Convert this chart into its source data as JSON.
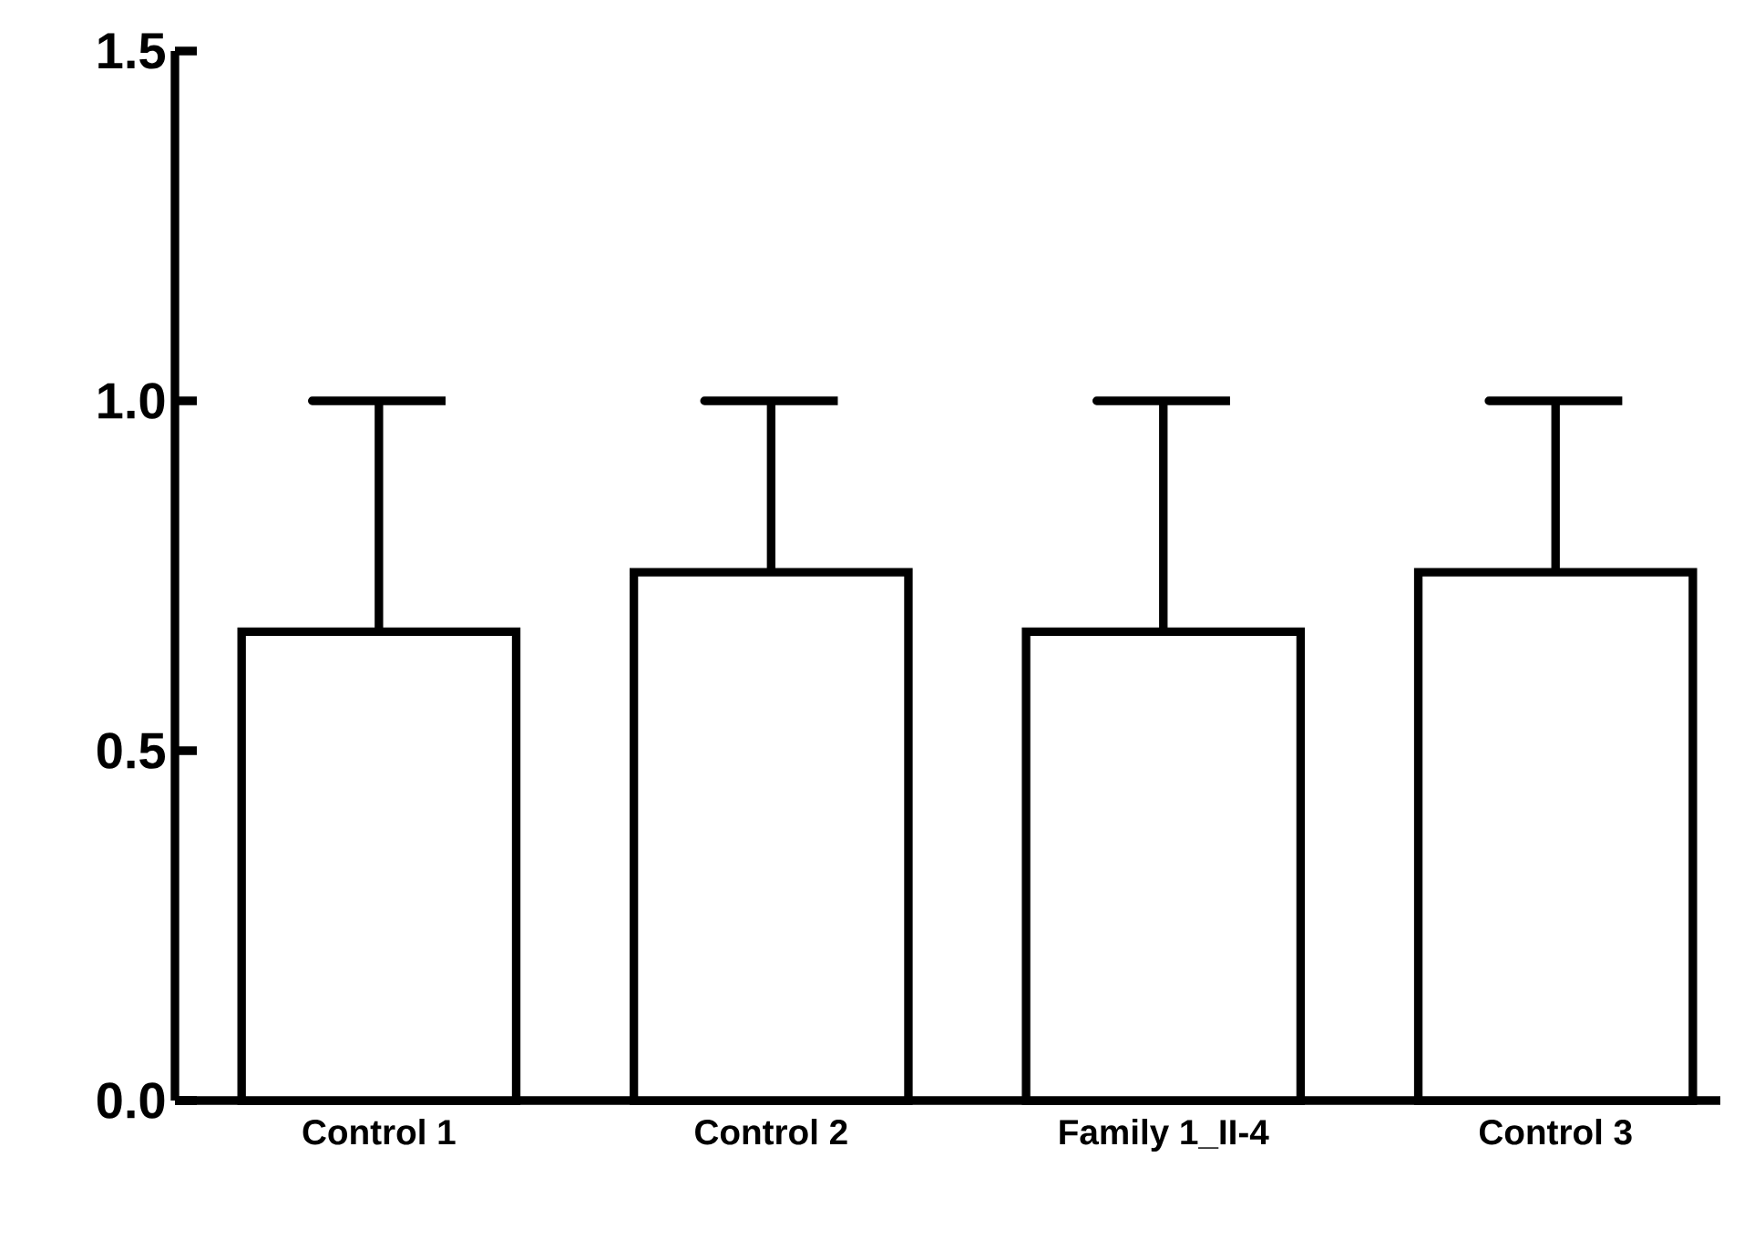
{
  "chart_data": {
    "type": "bar",
    "categories": [
      "Control 1",
      "Control 2",
      "Family 1_II-4",
      "Control 3"
    ],
    "values": [
      0.67,
      0.755,
      0.67,
      0.755
    ],
    "errors": [
      [
        0.67,
        1.0
      ],
      [
        0.755,
        1.0
      ],
      [
        0.67,
        1.0
      ],
      [
        0.755,
        1.0
      ]
    ],
    "color": "#ffffff",
    "ylim": [
      0,
      1.5
    ],
    "yticks": [
      {
        "value": 0,
        "label": "0.0"
      },
      {
        "value": 0.5,
        "label": "0.5"
      },
      {
        "value": 1.0,
        "label": "1.0"
      },
      {
        "value": 1.5,
        "label": "1.5"
      }
    ],
    "grid": false
  }
}
